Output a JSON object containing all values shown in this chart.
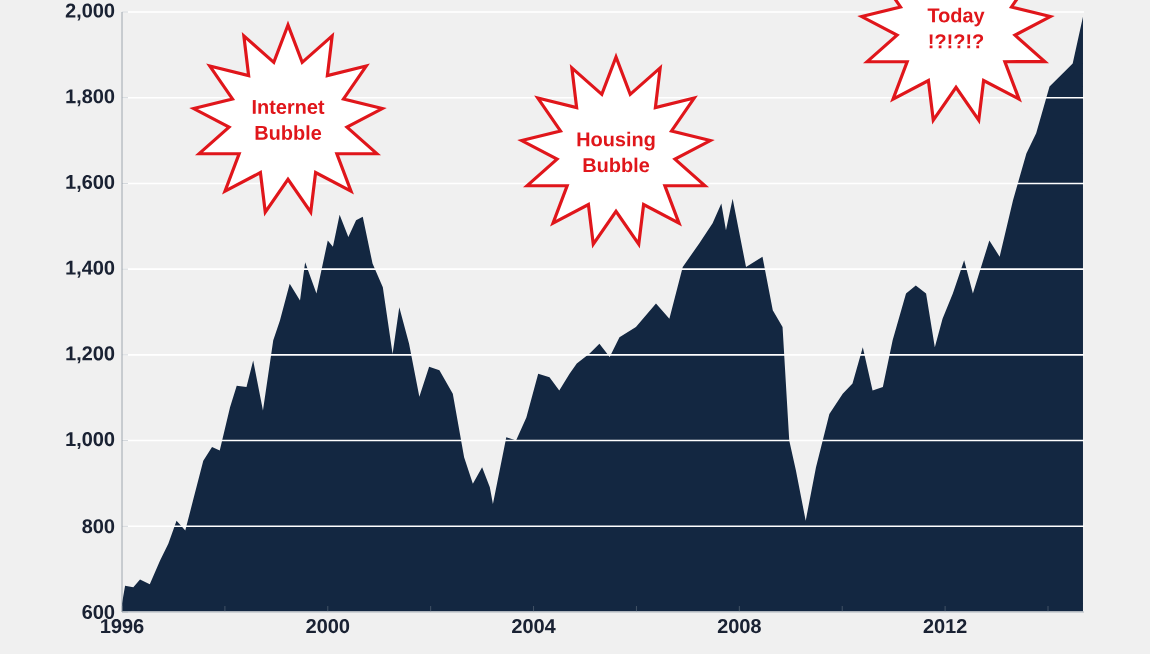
{
  "chart_data": {
    "type": "area",
    "x": [
      1996.0,
      1996.06,
      1996.22,
      1996.35,
      1996.54,
      1996.74,
      1996.9,
      1997.06,
      1997.23,
      1997.38,
      1997.58,
      1997.75,
      1997.9,
      1998.1,
      1998.23,
      1998.42,
      1998.55,
      1998.74,
      1998.94,
      1999.07,
      1999.26,
      1999.46,
      1999.56,
      1999.78,
      2000.0,
      2000.1,
      2000.23,
      2000.4,
      2000.55,
      2000.68,
      2000.87,
      2001.07,
      2001.26,
      2001.39,
      2001.58,
      2001.78,
      2001.97,
      2002.17,
      2002.43,
      2002.65,
      2002.82,
      2003.0,
      2003.15,
      2003.21,
      2003.47,
      2003.66,
      2003.86,
      2004.09,
      2004.31,
      2004.5,
      2004.7,
      2004.84,
      2005.09,
      2005.28,
      2005.48,
      2005.67,
      2005.99,
      2006.38,
      2006.64,
      2006.9,
      2007.22,
      2007.48,
      2007.65,
      2007.74,
      2007.87,
      2008.13,
      2008.45,
      2008.65,
      2008.84,
      2008.97,
      2009.1,
      2009.29,
      2009.49,
      2009.75,
      2010.01,
      2010.2,
      2010.4,
      2010.59,
      2010.79,
      2010.98,
      2011.24,
      2011.43,
      2011.63,
      2011.8,
      2011.95,
      2012.15,
      2012.37,
      2012.54,
      2012.86,
      2013.06,
      2013.32,
      2013.58,
      2013.77,
      2014.03,
      2014.29,
      2014.48,
      2014.68
    ],
    "values": [
      620,
      661,
      658,
      676,
      665,
      720,
      759,
      813,
      790,
      860,
      953,
      985,
      977,
      1078,
      1128,
      1125,
      1187,
      1070,
      1234,
      1280,
      1366,
      1327,
      1416,
      1343,
      1467,
      1452,
      1527,
      1475,
      1514,
      1522,
      1413,
      1358,
      1202,
      1311,
      1226,
      1102,
      1172,
      1164,
      1109,
      961,
      899,
      938,
      891,
      852,
      1008,
      1000,
      1054,
      1156,
      1148,
      1117,
      1156,
      1180,
      1203,
      1226,
      1195,
      1241,
      1265,
      1320,
      1284,
      1405,
      1460,
      1507,
      1553,
      1491,
      1564,
      1405,
      1429,
      1304,
      1265,
      1000,
      930,
      813,
      938,
      1062,
      1109,
      1133,
      1218,
      1117,
      1125,
      1234,
      1343,
      1362,
      1343,
      1218,
      1284,
      1343,
      1421,
      1343,
      1467,
      1429,
      1561,
      1670,
      1717,
      1826,
      1857,
      1880,
      1989
    ],
    "color": "#132741",
    "xlim": [
      1996,
      2014.7
    ],
    "xticks": [
      1996,
      {
        "value": 1998,
        "label": null
      },
      2000,
      {
        "value": 2002,
        "label": null
      },
      2004,
      {
        "value": 2006,
        "label": null
      },
      2008,
      {
        "value": 2010,
        "label": null
      },
      2012,
      {
        "value": 2014,
        "label": null
      }
    ],
    "ylim": [
      600,
      2000
    ],
    "yticks": [
      600,
      800,
      {
        "value": 1000,
        "label": "1,000"
      },
      {
        "value": 1200,
        "label": "1,200"
      },
      {
        "value": 1400,
        "label": "1,400"
      },
      {
        "value": 1600,
        "label": "1,600"
      },
      {
        "value": 1800,
        "label": "1,800"
      },
      {
        "value": 2000,
        "label": "2,000"
      }
    ],
    "grid": "y",
    "annotations": [
      "Internet Bubble",
      "Housing Bubble",
      "Today !?!?!?"
    ]
  }
}
